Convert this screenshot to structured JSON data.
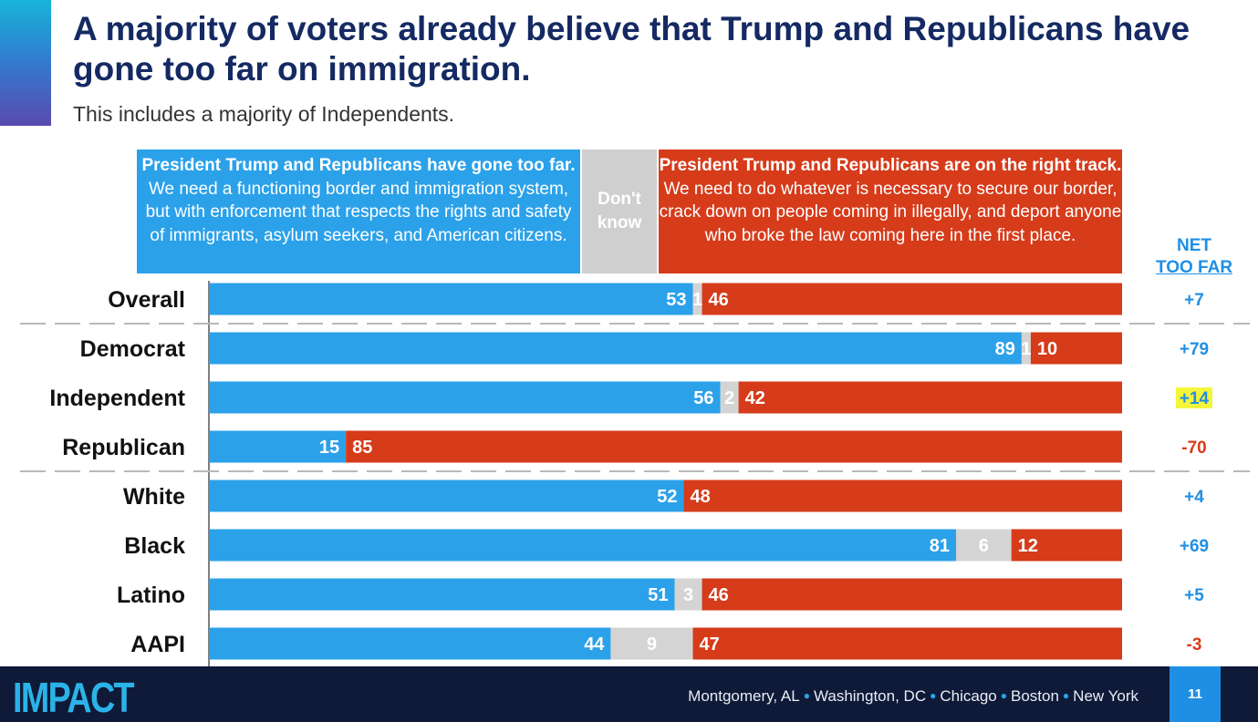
{
  "title": "A majority of voters already believe that Trump and Republicans have gone too far on immigration.",
  "subtitle": "This includes a majority of Independents.",
  "headers": {
    "left_bold": "President Trump and Republicans have gone too far.",
    "left_rest": " We need a functioning border and immigration system, but with enforcement that respects the rights and safety of immigrants, asylum seekers, and American citizens.",
    "middle": "Don't know",
    "right_bold": "President Trump and Republicans are on the right track.",
    "right_rest": " We need to do whatever is necessary to secure our border, crack down on people coming in illegally, and deport anyone who broke the law coming here in the first place."
  },
  "net_header": {
    "line1": "NET",
    "line2": "TOO FAR"
  },
  "colors": {
    "too_far": "#2ba1ea",
    "dont_know": "#d4d4d4",
    "right_track": "#d63b1a",
    "net_positive": "#1f8fe5",
    "net_negative": "#d63b1a",
    "highlight": "#f5f53a",
    "title": "#152a63"
  },
  "chart_data": {
    "type": "bar",
    "orientation": "horizontal",
    "stacked": true,
    "series": [
      {
        "name": "Have gone too far"
      },
      {
        "name": "Don't know"
      },
      {
        "name": "On the right track"
      }
    ],
    "categories": [
      "Overall",
      "Democrat",
      "Independent",
      "Republican",
      "White",
      "Black",
      "Latino",
      "AAPI"
    ],
    "rows": [
      {
        "label": "Overall",
        "too_far": 53,
        "dont_know": 1,
        "right_track": 46,
        "net": "+7",
        "highlight": false,
        "divider_after": true
      },
      {
        "label": "Democrat",
        "too_far": 89,
        "dont_know": 1,
        "right_track": 10,
        "net": "+79",
        "highlight": false,
        "divider_after": false
      },
      {
        "label": "Independent",
        "too_far": 56,
        "dont_know": 2,
        "right_track": 42,
        "net": "+14",
        "highlight": true,
        "divider_after": false
      },
      {
        "label": "Republican",
        "too_far": 15,
        "dont_know": 0,
        "right_track": 85,
        "net": "-70",
        "highlight": false,
        "divider_after": true
      },
      {
        "label": "White",
        "too_far": 52,
        "dont_know": 0,
        "right_track": 48,
        "net": "+4",
        "highlight": false,
        "divider_after": false
      },
      {
        "label": "Black",
        "too_far": 81,
        "dont_know": 6,
        "right_track": 12,
        "net": "+69",
        "highlight": false,
        "divider_after": false
      },
      {
        "label": "Latino",
        "too_far": 51,
        "dont_know": 3,
        "right_track": 46,
        "net": "+5",
        "highlight": false,
        "divider_after": false
      },
      {
        "label": "AAPI",
        "too_far": 44,
        "dont_know": 9,
        "right_track": 47,
        "net": "-3",
        "highlight": false,
        "divider_after": false
      }
    ]
  },
  "footer": {
    "logo": "IMPACT",
    "locations": [
      "Montgomery, AL",
      "Washington, DC",
      "Chicago",
      "Boston",
      "New York"
    ],
    "page_number": "11"
  }
}
